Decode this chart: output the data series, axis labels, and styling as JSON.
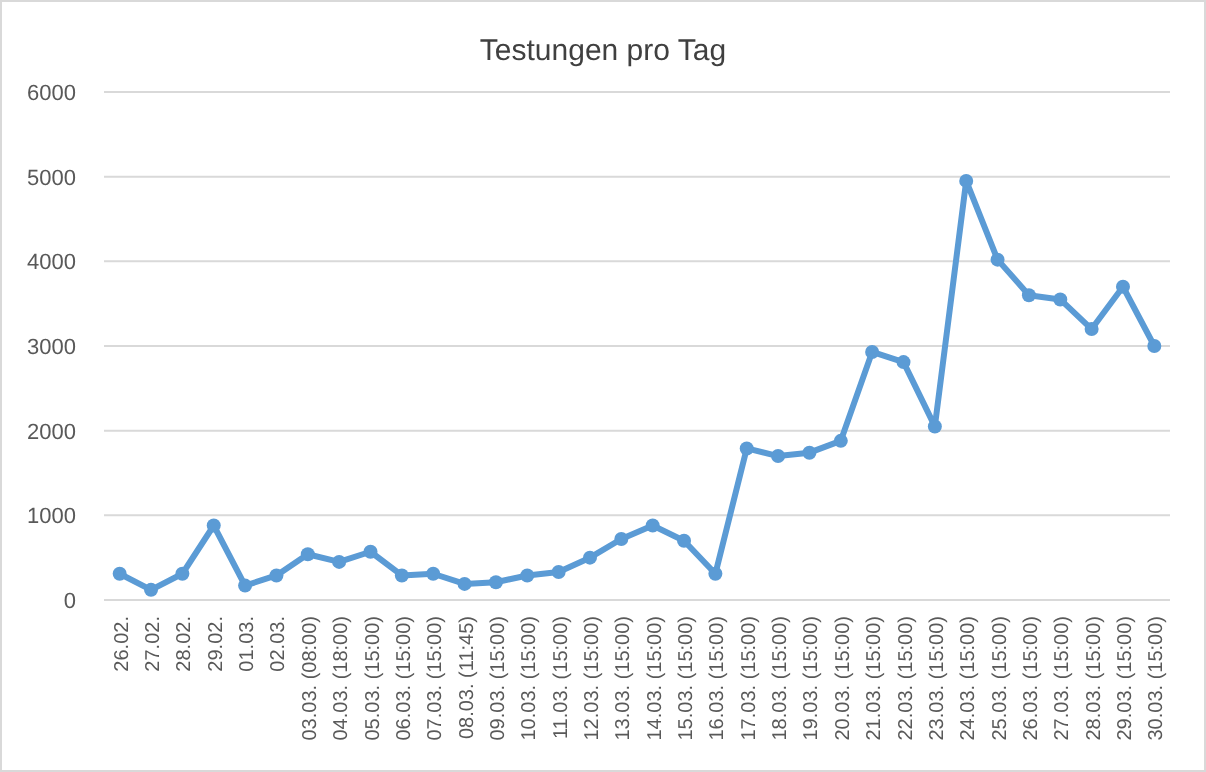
{
  "chart_data": {
    "type": "line",
    "title": "Testungen pro Tag",
    "categories": [
      "26.02.",
      "27.02.",
      "28.02.",
      "29.02.",
      "01.03.",
      "02.03.",
      "03.03. (08:00)",
      "04.03. (18:00)",
      "05.03. (15:00)",
      "06.03. (15:00)",
      "07.03. (15:00)",
      "08.03. (11:45)",
      "09.03. (15:00)",
      "10.03. (15:00)",
      "11.03. (15:00)",
      "12.03. (15:00)",
      "13.03. (15:00)",
      "14.03. (15:00)",
      "15.03. (15:00)",
      "16.03. (15:00)",
      "17.03. (15:00)",
      "18.03. (15:00)",
      "19.03. (15:00)",
      "20.03. (15:00)",
      "21.03. (15:00)",
      "22.03. (15:00)",
      "23.03. (15:00)",
      "24.03. (15:00)",
      "25.03. (15:00)",
      "26.03. (15:00)",
      "27.03. (15:00)",
      "28.03. (15:00)",
      "29.03. (15:00)",
      "30.03. (15:00)"
    ],
    "series": [
      {
        "color": "#5b9bd5",
        "values": [
          310,
          120,
          310,
          880,
          170,
          290,
          540,
          450,
          570,
          290,
          310,
          190,
          210,
          290,
          330,
          500,
          720,
          880,
          700,
          310,
          1790,
          1700,
          1740,
          1880,
          2930,
          2810,
          2050,
          4950,
          4020,
          3600,
          3550,
          3200,
          3700,
          3000
        ]
      }
    ],
    "ylim": [
      0,
      6000
    ],
    "yticks": [
      0,
      1000,
      2000,
      3000,
      4000,
      5000,
      6000
    ],
    "grid": "y",
    "marker": "circle"
  }
}
